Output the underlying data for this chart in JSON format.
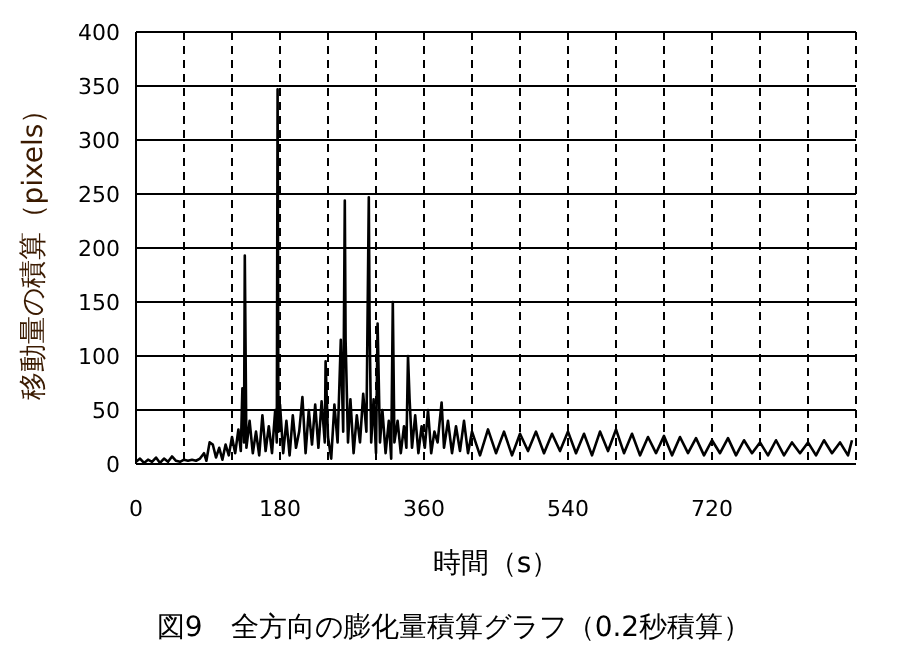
{
  "chart_data": {
    "type": "line",
    "title": "図9　全方向の膨化量積算グラフ（0.2秒積算）",
    "xlabel": "時間（s）",
    "ylabel": "移動量の積算（pixels）",
    "xlim": [
      0,
      900
    ],
    "xticks": [
      0,
      {
        "value": 60,
        "label": null
      },
      {
        "value": 120,
        "label": null
      },
      180,
      {
        "value": 240,
        "label": null
      },
      {
        "value": 300,
        "label": null
      },
      360,
      {
        "value": 420,
        "label": null
      },
      {
        "value": 480,
        "label": null
      },
      540,
      {
        "value": 600,
        "label": null
      },
      {
        "value": 660,
        "label": null
      },
      720,
      {
        "value": 780,
        "label": null
      },
      {
        "value": 840,
        "label": null
      }
    ],
    "ylim": [
      0,
      400
    ],
    "yticks": [
      0,
      50,
      100,
      150,
      200,
      250,
      300,
      350,
      400
    ],
    "grid": true,
    "series": [
      {
        "color": "#000000",
        "x": [
          0,
          5,
          10,
          15,
          20,
          25,
          30,
          35,
          40,
          45,
          50,
          55,
          60,
          65,
          70,
          75,
          80,
          85,
          88,
          92,
          96,
          100,
          104,
          108,
          112,
          116,
          120,
          124,
          128,
          131,
          133,
          135,
          136,
          138,
          142,
          146,
          150,
          154,
          158,
          162,
          166,
          170,
          174,
          176,
          177,
          178,
          180,
          184,
          188,
          192,
          196,
          200,
          204,
          208,
          212,
          216,
          220,
          224,
          228,
          232,
          236,
          237,
          240,
          244,
          248,
          252,
          256,
          259,
          261,
          262,
          265,
          268,
          272,
          276,
          280,
          284,
          288,
          291,
          292,
          294,
          297,
          300,
          302,
          305,
          308,
          312,
          316,
          319,
          321,
          323,
          327,
          331,
          335,
          338,
          340,
          342,
          345,
          349,
          353,
          357,
          361,
          365,
          369,
          373,
          377,
          382,
          385,
          390,
          395,
          400,
          405,
          410,
          415,
          420,
          430,
          440,
          450,
          460,
          470,
          480,
          490,
          500,
          510,
          520,
          530,
          540,
          550,
          560,
          570,
          580,
          590,
          600,
          610,
          620,
          630,
          640,
          650,
          660,
          670,
          680,
          690,
          700,
          710,
          720,
          730,
          740,
          750,
          760,
          770,
          780,
          790,
          800,
          810,
          820,
          830,
          840,
          850,
          860,
          870,
          880,
          890,
          895
        ],
        "values": [
          2,
          5,
          1,
          4,
          2,
          6,
          1,
          5,
          2,
          7,
          3,
          2,
          4,
          3,
          4,
          3,
          5,
          10,
          3,
          20,
          18,
          6,
          15,
          4,
          18,
          8,
          25,
          10,
          32,
          12,
          70,
          20,
          193,
          15,
          40,
          10,
          30,
          8,
          45,
          12,
          35,
          10,
          50,
          20,
          347,
          30,
          55,
          10,
          40,
          8,
          45,
          15,
          30,
          62,
          10,
          50,
          18,
          55,
          15,
          58,
          20,
          95,
          25,
          5,
          55,
          20,
          115,
          30,
          244,
          115,
          20,
          60,
          10,
          45,
          20,
          65,
          30,
          247,
          130,
          20,
          60,
          10,
          130,
          20,
          50,
          10,
          40,
          5,
          150,
          20,
          40,
          10,
          35,
          15,
          100,
          60,
          15,
          45,
          10,
          35,
          15,
          50,
          10,
          30,
          20,
          57,
          15,
          40,
          10,
          35,
          12,
          40,
          10,
          30,
          8,
          32,
          10,
          30,
          8,
          28,
          12,
          30,
          10,
          28,
          12,
          30,
          10,
          28,
          8,
          30,
          12,
          32,
          10,
          28,
          8,
          25,
          10,
          26,
          8,
          25,
          10,
          24,
          8,
          22,
          10,
          24,
          8,
          22,
          10,
          20,
          8,
          22,
          8,
          20,
          10,
          20,
          8,
          22,
          10,
          20,
          8,
          22
        ]
      }
    ]
  }
}
